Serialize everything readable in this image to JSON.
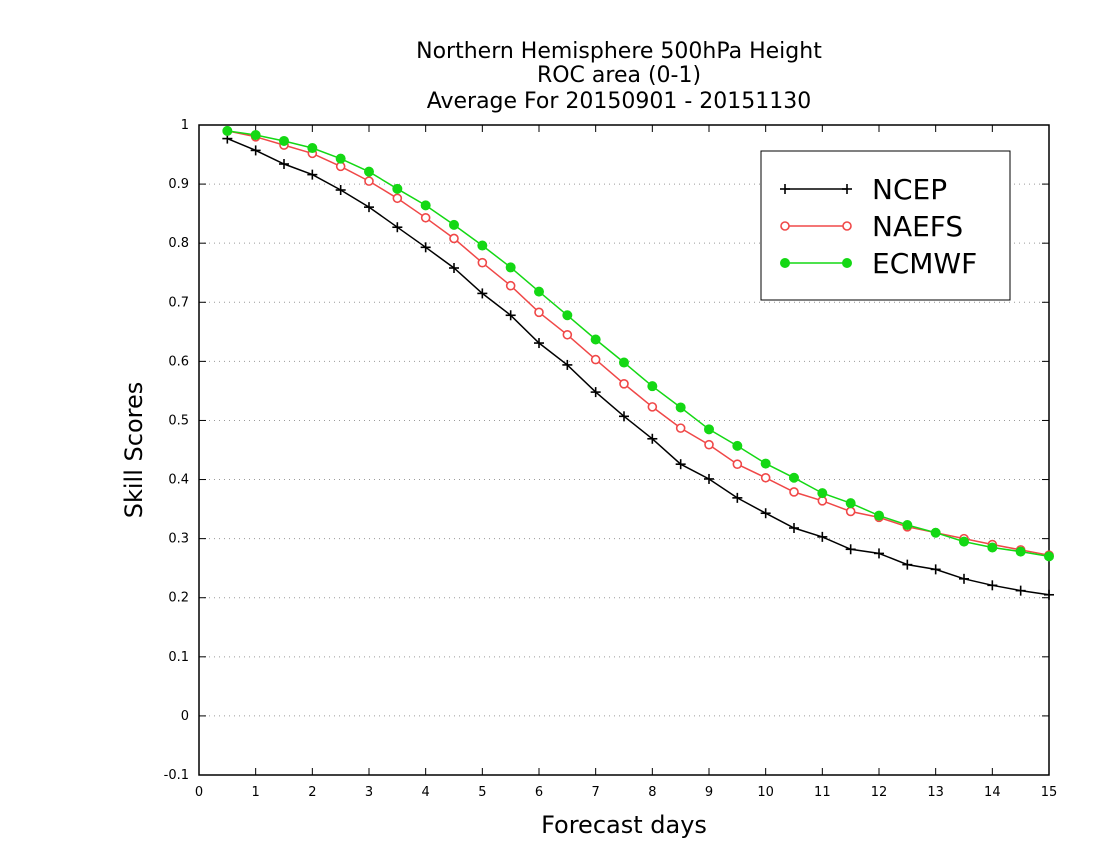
{
  "chart_data": {
    "type": "line",
    "title_lines": [
      "Northern Hemisphere 500hPa Height",
      "ROC area (0-1)",
      "Average For 20150901 - 20151130"
    ],
    "xlabel": "Forecast days",
    "ylabel": "Skill Scores",
    "xlim": [
      0,
      15
    ],
    "ylim": [
      -0.1,
      1
    ],
    "x_ticks": [
      0,
      1,
      2,
      3,
      4,
      5,
      6,
      7,
      8,
      9,
      10,
      11,
      12,
      13,
      14,
      15
    ],
    "y_ticks": [
      -0.1,
      0,
      0.1,
      0.2,
      0.3,
      0.4,
      0.5,
      0.6,
      0.7,
      0.8,
      0.9,
      1
    ],
    "y_tick_labels": [
      "-0.1",
      "0",
      "0.1",
      "0.2",
      "0.3",
      "0.4",
      "0.5",
      "0.6",
      "0.7",
      "0.8",
      "0.9",
      "1"
    ],
    "grid": "horizontal dotted",
    "legend_position": "top-right",
    "x": [
      0.5,
      1,
      1.5,
      2,
      2.5,
      3,
      3.5,
      4,
      4.5,
      5,
      5.5,
      6,
      6.5,
      7,
      7.5,
      8,
      8.5,
      9,
      9.5,
      10,
      10.5,
      11,
      11.5,
      12,
      12.5,
      13,
      13.5,
      14,
      14.5,
      15
    ],
    "series": [
      {
        "name": "NCEP",
        "color": "#000000",
        "marker": "plus",
        "values": [
          0.977,
          0.957,
          0.934,
          0.916,
          0.89,
          0.861,
          0.827,
          0.793,
          0.758,
          0.715,
          0.678,
          0.631,
          0.594,
          0.548,
          0.507,
          0.469,
          0.426,
          0.401,
          0.369,
          0.343,
          0.318,
          0.303,
          0.282,
          0.275,
          0.256,
          0.248,
          0.232,
          0.221,
          0.212,
          0.205
        ]
      },
      {
        "name": "NAEFS",
        "color": "#f04848",
        "marker": "open-circle",
        "values": [
          0.99,
          0.98,
          0.966,
          0.952,
          0.93,
          0.905,
          0.876,
          0.843,
          0.808,
          0.767,
          0.728,
          0.683,
          0.645,
          0.603,
          0.562,
          0.523,
          0.487,
          0.459,
          0.426,
          0.403,
          0.379,
          0.364,
          0.346,
          0.336,
          0.32,
          0.31,
          0.3,
          0.29,
          0.281,
          0.272
        ]
      },
      {
        "name": "ECMWF",
        "color": "#14d814",
        "marker": "filled-circle",
        "values": [
          0.99,
          0.983,
          0.973,
          0.961,
          0.943,
          0.921,
          0.892,
          0.864,
          0.831,
          0.796,
          0.759,
          0.718,
          0.678,
          0.637,
          0.598,
          0.558,
          0.522,
          0.485,
          0.457,
          0.427,
          0.403,
          0.377,
          0.36,
          0.339,
          0.323,
          0.31,
          0.295,
          0.285,
          0.278,
          0.27
        ]
      }
    ]
  }
}
